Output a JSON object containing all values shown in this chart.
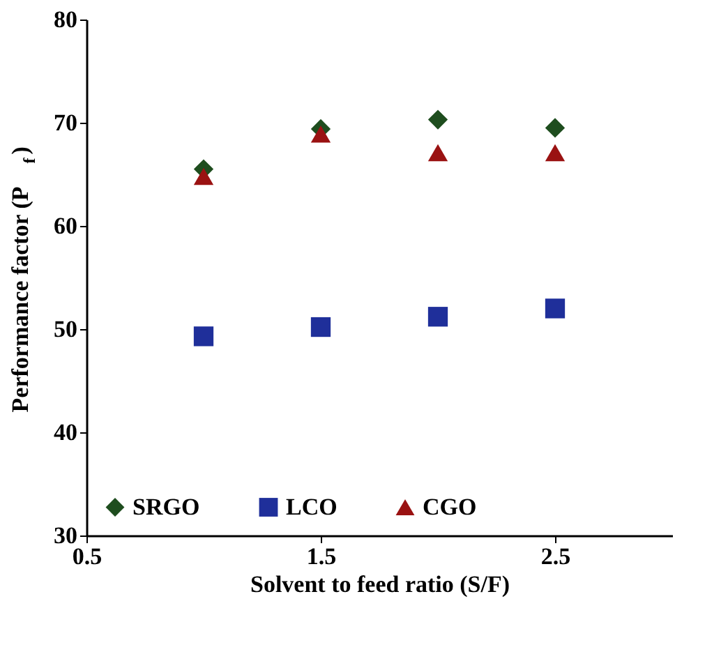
{
  "chart_data": {
    "type": "scatter",
    "xlabel": "Solvent to feed ratio (S/F)",
    "ylabel": "Performance factor (P$_{f}$)",
    "x": [
      1,
      1.5,
      2,
      2.5
    ],
    "series": [
      {
        "name": "SRGO",
        "color": "#1e4d1e",
        "marker": "diamond",
        "values": [
          65.5,
          69.4,
          70.3,
          69.5
        ]
      },
      {
        "name": "LCO",
        "color": "#1f2f9a",
        "marker": "square",
        "values": [
          49.3,
          50.2,
          51.2,
          52.0
        ]
      },
      {
        "name": "CGO",
        "color": "#9a1212",
        "marker": "triangle",
        "values": [
          64.8,
          68.9,
          67.1,
          67.1
        ]
      }
    ],
    "xlim": [
      0.5,
      3.0
    ],
    "xticks": [
      0.5,
      1.5,
      2.5
    ],
    "ylim": [
      30,
      80
    ],
    "yticks": [
      30,
      40,
      50,
      60,
      70,
      80
    ],
    "grid": false,
    "legend": "bottom"
  }
}
